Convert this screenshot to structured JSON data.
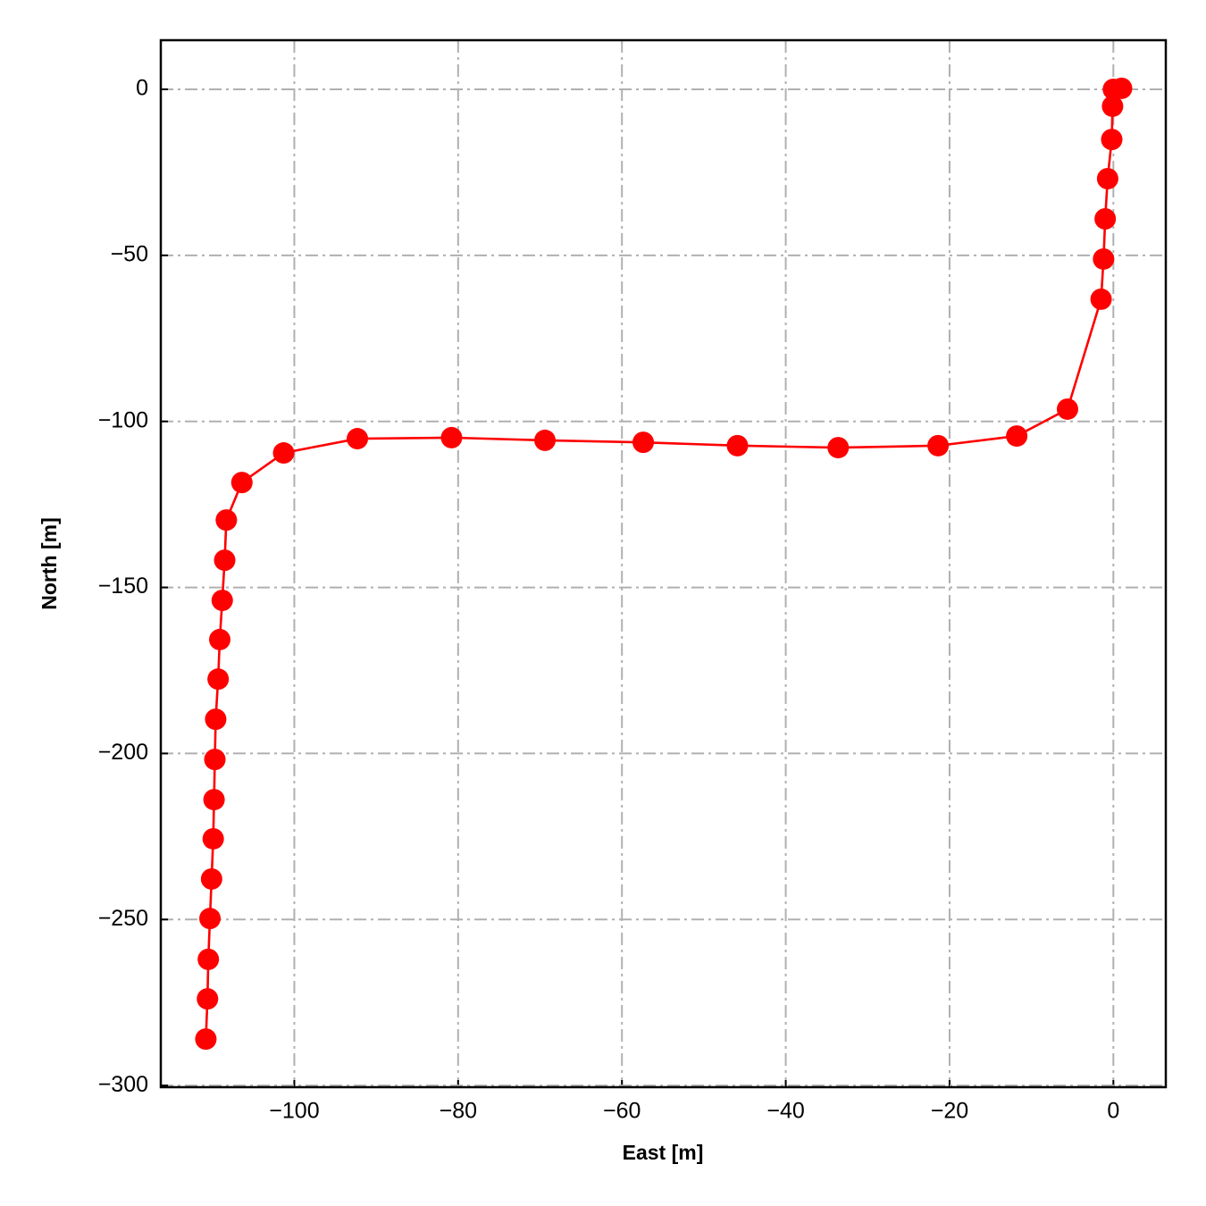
{
  "chart_data": {
    "type": "line",
    "xlabel": "East [m]",
    "ylabel": "North [m]",
    "x": [
      1.0,
      0,
      -0.1,
      -0.2,
      -0.7,
      -1.0,
      -1.2,
      -1.5,
      -5.6,
      -11.8,
      -21.4,
      -33.6,
      -45.9,
      -57.4,
      -69.4,
      -80.8,
      -92.3,
      -101.3,
      -106.4,
      -108.3,
      -108.5,
      -108.8,
      -109.1,
      -109.3,
      -109.6,
      -109.7,
      -109.8,
      -109.9,
      -110.1,
      -110.3,
      -110.5,
      -110.6,
      -110.8
    ],
    "values": [
      0.3,
      0,
      -5.1,
      -15.1,
      -26.9,
      -39.0,
      -51.1,
      -63.2,
      -96.3,
      -104.4,
      -107.3,
      -107.9,
      -107.3,
      -106.3,
      -105.7,
      -104.9,
      -105.2,
      -109.5,
      -118.4,
      -129.7,
      -141.8,
      -153.9,
      -165.7,
      -177.6,
      -189.7,
      -201.8,
      -213.9,
      -225.7,
      -237.8,
      -249.7,
      -262.0,
      -273.9,
      -286.0
    ],
    "color": "#ff0000",
    "markers": true,
    "grid": true,
    "xlim": [
      -116.3,
      6.4
    ],
    "ylim": [
      -300.5,
      14.8
    ],
    "xticks": [
      {
        "value": -100,
        "label": "−100"
      },
      {
        "value": -80,
        "label": "−80"
      },
      {
        "value": -60,
        "label": "−60"
      },
      {
        "value": -40,
        "label": "−40"
      },
      {
        "value": -20,
        "label": "−20"
      },
      0
    ],
    "yticks": [
      {
        "value": -300,
        "label": "−300"
      },
      {
        "value": -250,
        "label": "−250"
      },
      {
        "value": -200,
        "label": "−200"
      },
      {
        "value": -150,
        "label": "−150"
      },
      {
        "value": -100,
        "label": "−100"
      },
      {
        "value": -50,
        "label": "−50"
      },
      0
    ]
  }
}
